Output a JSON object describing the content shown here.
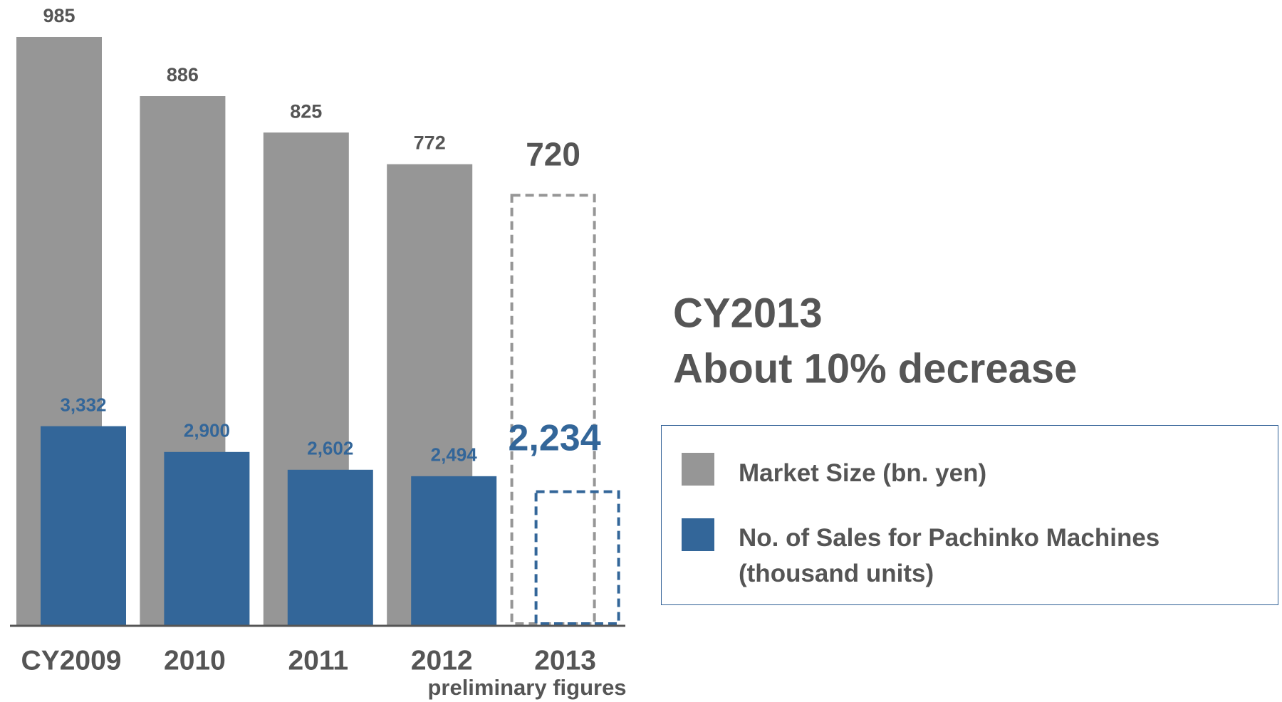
{
  "chart_data": {
    "type": "bar",
    "categories": [
      "CY2009",
      "2010",
      "2011",
      "2012",
      "2013"
    ],
    "series": [
      {
        "name": "Market Size (bn. yen)",
        "color": "#969696",
        "values": [
          985,
          886,
          825,
          772,
          720
        ]
      },
      {
        "name": "No. of Sales for Pachinko Machines (thousand units)",
        "color": "#336699",
        "axis": "y2",
        "values": [
          3332,
          2900,
          2602,
          2494,
          2234
        ],
        "value_labels": [
          "3,332",
          "2,900",
          "2,602",
          "2,494",
          "2,234"
        ]
      }
    ],
    "dashed": [
      false,
      false,
      false,
      false,
      true
    ],
    "ylim": [
      0,
      1047
    ],
    "y2lim": [
      0,
      10470
    ],
    "annotations": [
      "preliminary figures",
      "CY2013",
      "About 10% decrease"
    ]
  }
}
